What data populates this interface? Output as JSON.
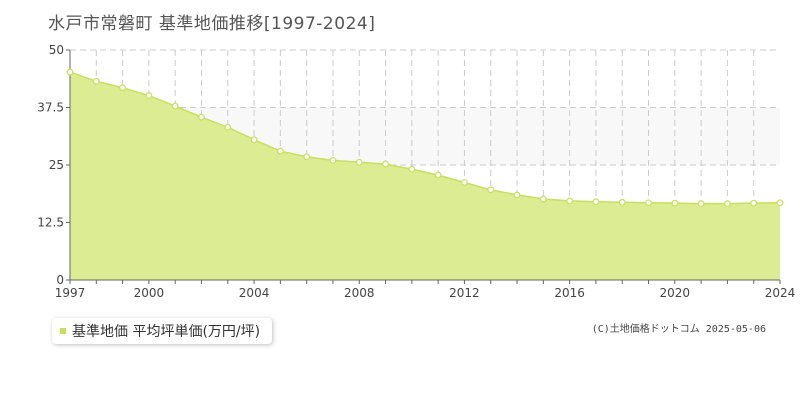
{
  "title": "水戸市常磐町 基準地価推移[1997-2024]",
  "legend_label": "基準地価 平均坪単価(万円/坪)",
  "credit": "(C)土地価格ドットコム 2025-05-06",
  "colors": {
    "fill": "#dbec93",
    "line": "#c8e05a",
    "marker_fill": "#ffffff",
    "band": "#f8f8f8",
    "grid": "#cccccc",
    "axis": "#666666"
  },
  "chart_data": {
    "type": "area",
    "title": "水戸市常磐町 基準地価推移[1997-2024]",
    "xlabel": "",
    "ylabel": "",
    "x": [
      1997,
      1998,
      1999,
      2000,
      2001,
      2002,
      2003,
      2004,
      2005,
      2006,
      2007,
      2008,
      2009,
      2010,
      2011,
      2012,
      2013,
      2014,
      2015,
      2016,
      2017,
      2018,
      2019,
      2020,
      2021,
      2022,
      2023,
      2024
    ],
    "series": [
      {
        "name": "基準地価 平均坪単価(万円/坪)",
        "values": [
          45.2,
          43.2,
          41.8,
          40.1,
          37.8,
          35.4,
          33.2,
          30.5,
          28.0,
          26.8,
          26.0,
          25.6,
          25.2,
          24.1,
          22.8,
          21.2,
          19.6,
          18.5,
          17.6,
          17.2,
          17.0,
          16.9,
          16.8,
          16.7,
          16.6,
          16.6,
          16.7,
          16.8
        ]
      }
    ],
    "xlim": [
      1997,
      2024
    ],
    "ylim": [
      0,
      50
    ],
    "x_ticks": [
      "1997",
      "2000",
      "2004",
      "2008",
      "2012",
      "2016",
      "2020",
      "2024"
    ],
    "y_ticks": [
      "0",
      "12.5",
      "25",
      "37.5",
      "50"
    ],
    "grid": true,
    "legend_position": "bottom-left"
  }
}
